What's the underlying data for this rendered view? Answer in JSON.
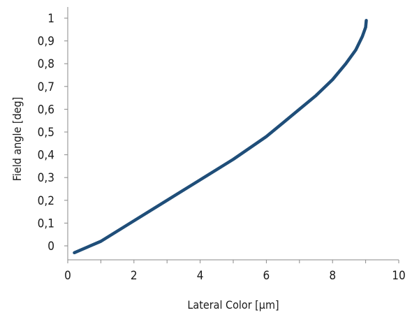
{
  "chart_data": {
    "type": "line",
    "title": "",
    "xlabel": "Lateral Color [µm]",
    "ylabel": "Field angle [deg]",
    "xlim": [
      0,
      10
    ],
    "ylim": [
      0,
      1
    ],
    "x_ticks": [
      {
        "value": 0,
        "label": "0"
      },
      {
        "value": 2,
        "label": "2"
      },
      {
        "value": 4,
        "label": "4"
      },
      {
        "value": 6,
        "label": "6"
      },
      {
        "value": 8,
        "label": "8"
      },
      {
        "value": 10,
        "label": "10"
      }
    ],
    "y_ticks": [
      {
        "value": 0,
        "label": "0"
      },
      {
        "value": 0.1,
        "label": "0,1"
      },
      {
        "value": 0.2,
        "label": "0,2"
      },
      {
        "value": 0.3,
        "label": "0,3"
      },
      {
        "value": 0.4,
        "label": "0,4"
      },
      {
        "value": 0.5,
        "label": "0,5"
      },
      {
        "value": 0.6,
        "label": "0,6"
      },
      {
        "value": 0.7,
        "label": "0,7"
      },
      {
        "value": 0.8,
        "label": "0,8"
      },
      {
        "value": 0.9,
        "label": "0,9"
      },
      {
        "value": 1,
        "label": "1"
      }
    ],
    "grid": false,
    "legend": "none",
    "series": [
      {
        "color": "#1f4e79",
        "points": [
          [
            0.2,
            -0.03
          ],
          [
            1.0,
            0.02
          ],
          [
            2.0,
            0.11
          ],
          [
            3.0,
            0.2
          ],
          [
            4.0,
            0.29
          ],
          [
            5.0,
            0.38
          ],
          [
            6.0,
            0.48
          ],
          [
            6.5,
            0.54
          ],
          [
            7.0,
            0.6
          ],
          [
            7.5,
            0.66
          ],
          [
            8.0,
            0.73
          ],
          [
            8.4,
            0.8
          ],
          [
            8.7,
            0.86
          ],
          [
            8.9,
            0.92
          ],
          [
            9.0,
            0.96
          ],
          [
            9.02,
            0.99
          ]
        ]
      }
    ]
  }
}
